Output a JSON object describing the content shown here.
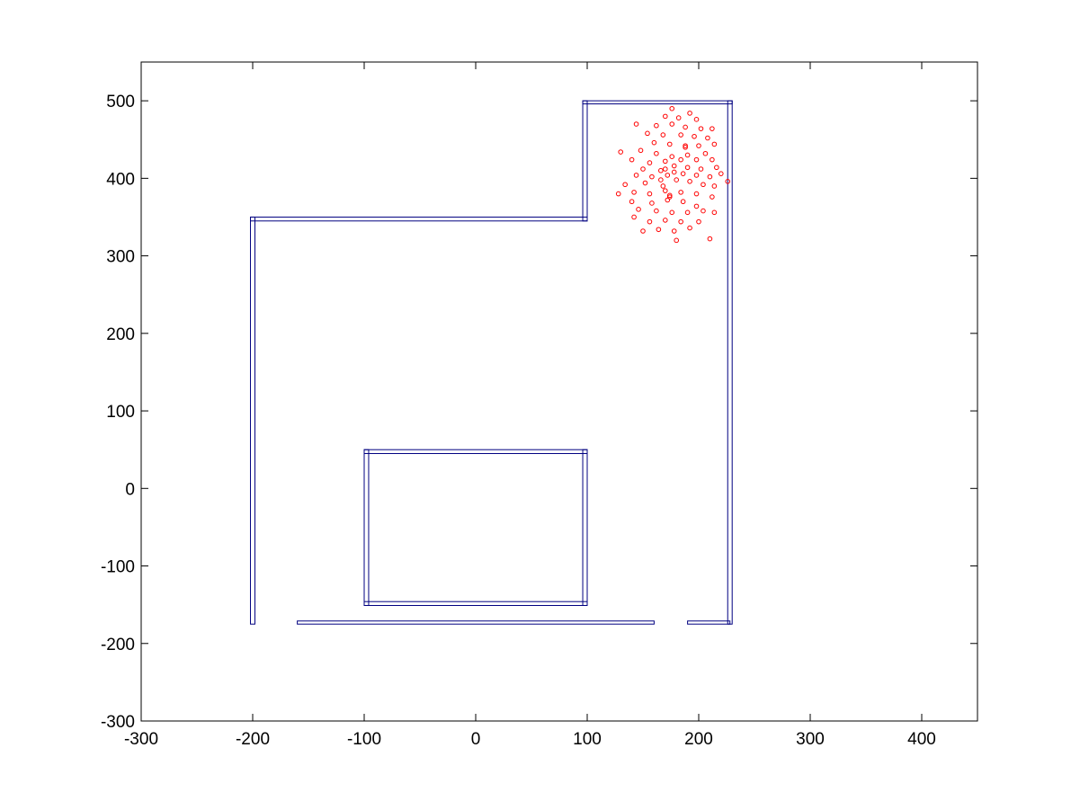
{
  "chart_data": {
    "type": "scatter",
    "title": "",
    "xlabel": "",
    "ylabel": "",
    "xlim": [
      -300,
      450
    ],
    "ylim": [
      -300,
      550
    ],
    "grid": false,
    "xticks": [
      -300,
      -200,
      -100,
      0,
      100,
      200,
      300,
      400
    ],
    "yticks": [
      -300,
      -200,
      -100,
      0,
      100,
      200,
      300,
      400,
      500
    ],
    "xtick_labels": [
      "-300",
      "-200",
      "-100",
      "0",
      "100",
      "200",
      "300",
      "400"
    ],
    "ytick_labels": [
      "-300",
      "-200",
      "-100",
      "0",
      "100",
      "200",
      "300",
      "400",
      "500"
    ],
    "colors": {
      "walls": "#000080",
      "points": "#ff0000",
      "axes": "#000000"
    },
    "walls": [
      {
        "x1": -202,
        "y1": -175,
        "x2": -198,
        "y2": 350
      },
      {
        "x1": -202,
        "y1": 345,
        "x2": 100,
        "y2": 350
      },
      {
        "x1": 96,
        "y1": 345,
        "x2": 100,
        "y2": 500
      },
      {
        "x1": 96,
        "y1": 496,
        "x2": 230,
        "y2": 500
      },
      {
        "x1": 226,
        "y1": -175,
        "x2": 230,
        "y2": 500
      },
      {
        "x1": -100,
        "y1": -151,
        "x2": 100,
        "y2": -146
      },
      {
        "x1": -100,
        "y1": 45,
        "x2": 100,
        "y2": 50
      },
      {
        "x1": -100,
        "y1": -151,
        "x2": -96,
        "y2": 50
      },
      {
        "x1": 96,
        "y1": -151,
        "x2": 100,
        "y2": 50
      },
      {
        "x1": -160,
        "y1": -175,
        "x2": 160,
        "y2": -171
      },
      {
        "x1": 190,
        "y1": -175,
        "x2": 228,
        "y2": -171
      }
    ],
    "points": [
      [
        176,
        490
      ],
      [
        192,
        484
      ],
      [
        170,
        480
      ],
      [
        182,
        478
      ],
      [
        198,
        476
      ],
      [
        144,
        470
      ],
      [
        162,
        468
      ],
      [
        176,
        470
      ],
      [
        188,
        466
      ],
      [
        202,
        464
      ],
      [
        212,
        464
      ],
      [
        154,
        458
      ],
      [
        168,
        456
      ],
      [
        184,
        456
      ],
      [
        196,
        454
      ],
      [
        208,
        452
      ],
      [
        160,
        446
      ],
      [
        174,
        444
      ],
      [
        188,
        442
      ],
      [
        200,
        442
      ],
      [
        214,
        444
      ],
      [
        130,
        434
      ],
      [
        148,
        436
      ],
      [
        162,
        432
      ],
      [
        176,
        428
      ],
      [
        190,
        430
      ],
      [
        206,
        432
      ],
      [
        140,
        424
      ],
      [
        156,
        420
      ],
      [
        170,
        422
      ],
      [
        184,
        424
      ],
      [
        198,
        424
      ],
      [
        212,
        424
      ],
      [
        150,
        412
      ],
      [
        166,
        410
      ],
      [
        178,
        416
      ],
      [
        190,
        414
      ],
      [
        202,
        412
      ],
      [
        216,
        414
      ],
      [
        144,
        404
      ],
      [
        158,
        402
      ],
      [
        172,
        404
      ],
      [
        186,
        406
      ],
      [
        198,
        404
      ],
      [
        210,
        402
      ],
      [
        220,
        406
      ],
      [
        134,
        392
      ],
      [
        152,
        394
      ],
      [
        166,
        398
      ],
      [
        180,
        398
      ],
      [
        192,
        396
      ],
      [
        204,
        392
      ],
      [
        214,
        390
      ],
      [
        226,
        396
      ],
      [
        142,
        382
      ],
      [
        156,
        380
      ],
      [
        170,
        384
      ],
      [
        184,
        382
      ],
      [
        198,
        380
      ],
      [
        212,
        376
      ],
      [
        128,
        380
      ],
      [
        140,
        370
      ],
      [
        158,
        368
      ],
      [
        172,
        372
      ],
      [
        186,
        370
      ],
      [
        198,
        364
      ],
      [
        146,
        360
      ],
      [
        162,
        358
      ],
      [
        176,
        356
      ],
      [
        190,
        356
      ],
      [
        204,
        358
      ],
      [
        214,
        356
      ],
      [
        142,
        350
      ],
      [
        156,
        344
      ],
      [
        170,
        346
      ],
      [
        184,
        344
      ],
      [
        200,
        344
      ],
      [
        150,
        332
      ],
      [
        164,
        334
      ],
      [
        178,
        332
      ],
      [
        192,
        336
      ],
      [
        180,
        320
      ],
      [
        210,
        322
      ],
      [
        174,
        376
      ],
      [
        168,
        390
      ],
      [
        178,
        408
      ],
      [
        188,
        440
      ],
      [
        174,
        378
      ],
      [
        170,
        412
      ]
    ]
  }
}
